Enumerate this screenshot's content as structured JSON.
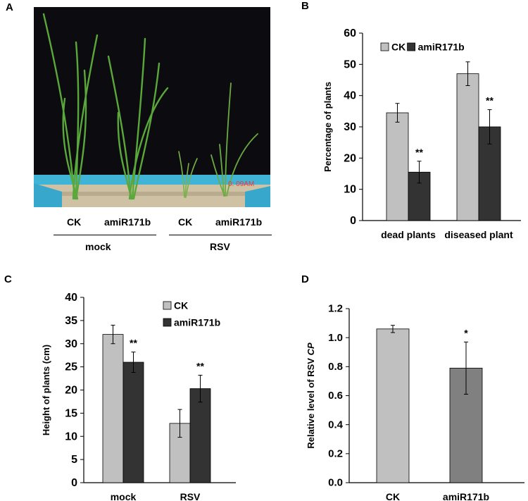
{
  "panel_a": {
    "letter": "A",
    "photo_timestamp": "0: 09AM",
    "group_labels": [
      "mock",
      "RSV"
    ],
    "plant_labels": [
      "CK",
      "amiR171b",
      "CK",
      "amiR171b"
    ],
    "colors": {
      "background": "#0c0c10",
      "tray": "#3fb4d6",
      "soil": "#cfc1a4",
      "leaf": "#5aa83a"
    }
  },
  "chart_data": [
    {
      "id": "B",
      "type": "bar",
      "title": "",
      "xlabel": "",
      "ylabel": "Percentage of plants",
      "categories": [
        "dead plants",
        "diseased plant"
      ],
      "series": [
        {
          "name": "CK",
          "color": "#c0c0c0",
          "values": [
            34.5,
            47
          ],
          "errors": [
            3,
            3.8
          ],
          "annotations": [
            "",
            ""
          ]
        },
        {
          "name": "amiR171b",
          "color": "#333333",
          "values": [
            15.5,
            30
          ],
          "errors": [
            3.5,
            5.5
          ],
          "annotations": [
            "**",
            "**"
          ]
        }
      ],
      "ylim": [
        0,
        60
      ],
      "yticks": [
        0,
        10,
        20,
        30,
        40,
        50,
        60
      ],
      "ytick_labels": [
        "0",
        "10",
        "20",
        "30",
        "40",
        "50",
        "60"
      ],
      "legend_position": "top-left",
      "grid": false
    },
    {
      "id": "C",
      "type": "bar",
      "title": "",
      "xlabel": "",
      "ylabel": "Height of plants (cm)",
      "categories": [
        "mock",
        "RSV"
      ],
      "series": [
        {
          "name": "CK",
          "color": "#c0c0c0",
          "values": [
            32,
            12.8
          ],
          "errors": [
            2,
            3
          ],
          "annotations": [
            "",
            ""
          ]
        },
        {
          "name": "amiR171b",
          "color": "#333333",
          "values": [
            26,
            20.3
          ],
          "errors": [
            2.2,
            2.9
          ],
          "annotations": [
            "**",
            "**"
          ]
        }
      ],
      "ylim": [
        0,
        40
      ],
      "yticks": [
        0,
        5,
        10,
        15,
        20,
        25,
        30,
        35,
        40
      ],
      "ytick_labels": [
        "0",
        "5",
        "10",
        "15",
        "20",
        "25",
        "30",
        "35",
        "40"
      ],
      "legend_position": "top-right",
      "grid": false
    },
    {
      "id": "D",
      "type": "bar",
      "title": "",
      "xlabel": "",
      "ylabel": "Relative level of RSV",
      "ylabel_italic": "CP",
      "categories": [
        "CK",
        "amiR171b"
      ],
      "series": [
        {
          "name": "",
          "colors": [
            "#c0c0c0",
            "#808080"
          ],
          "values": [
            1.06,
            0.79
          ],
          "errors": [
            0.025,
            0.18
          ],
          "annotations": [
            "",
            "*"
          ]
        }
      ],
      "ylim": [
        0,
        1.2
      ],
      "yticks": [
        0,
        0.2,
        0.4,
        0.6,
        0.8,
        1.0,
        1.2
      ],
      "ytick_labels": [
        "0.0",
        "0.2",
        "0.4",
        "0.6",
        "0.8",
        "1.0",
        "1.2"
      ],
      "legend_position": "none",
      "grid": false
    }
  ]
}
